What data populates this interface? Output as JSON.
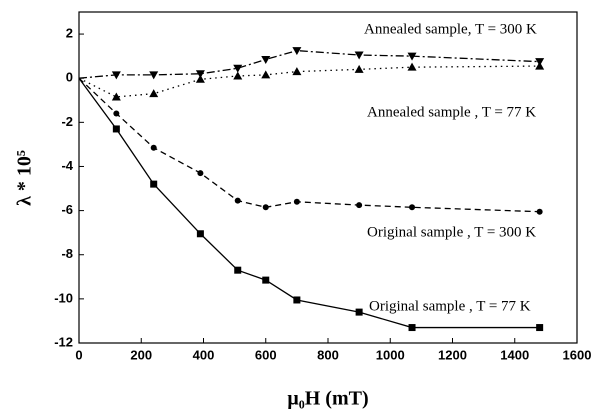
{
  "chart_data": {
    "type": "line",
    "x_label": "μ₀H (mT)",
    "y_label": "λ * 10⁵",
    "x": [
      0,
      120,
      240,
      390,
      510,
      600,
      700,
      900,
      1070,
      1480
    ],
    "series": [
      {
        "name": "Annealed sample, T = 300 K",
        "color": "#000000",
        "linestyle": "dashdot",
        "marker": "triangle-down",
        "values": [
          0,
          0.15,
          0.15,
          0.2,
          0.45,
          0.85,
          1.25,
          1.05,
          1.0,
          0.75
        ]
      },
      {
        "name": "Annealed sample , T = 77 K",
        "color": "#000000",
        "linestyle": "dotted",
        "marker": "triangle-up",
        "values": [
          0,
          -0.85,
          -0.7,
          -0.05,
          0.1,
          0.15,
          0.3,
          0.4,
          0.5,
          0.55
        ]
      },
      {
        "name": "Original sample , T = 300 K",
        "color": "#000000",
        "linestyle": "dashed",
        "marker": "circle",
        "values": [
          0,
          -1.6,
          -3.15,
          -4.3,
          -5.55,
          -5.85,
          -5.6,
          -5.75,
          -5.85,
          -6.05
        ]
      },
      {
        "name": "Original sample , T = 77 K",
        "color": "#000000",
        "linestyle": "solid",
        "marker": "square",
        "values": [
          0,
          -2.3,
          -4.8,
          -7.05,
          -8.7,
          -9.15,
          -10.05,
          -10.6,
          -11.3,
          -11.3
        ]
      }
    ],
    "xlim": [
      0,
      1600
    ],
    "xticks": [
      0,
      200,
      400,
      600,
      800,
      1000,
      1200,
      1400,
      1600
    ],
    "ylim": [
      -12,
      3
    ],
    "yticks": [
      -12,
      -10,
      -8,
      -6,
      -4,
      -2,
      0,
      2
    ]
  }
}
